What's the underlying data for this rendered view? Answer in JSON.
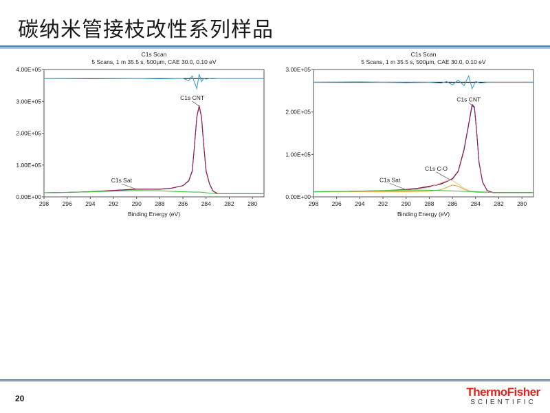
{
  "slide": {
    "title": "碳纳米管接枝改性系列样品",
    "page_number": "20",
    "brand": {
      "top": "ThermoFisher",
      "bottom": "SCIENTIFIC",
      "color": "#e2231a"
    },
    "accent_color": "#5b7fae"
  },
  "chart_data": [
    {
      "type": "line",
      "title": "C1s Scan",
      "subtitle": "5 Scans,  1 m 35.5 s,  500µm,  CAE 30.0,  0.10 eV",
      "xlabel": "Binding Energy (eV)",
      "ylabel": "",
      "xlim": [
        298,
        279
      ],
      "ylim": [
        0,
        400000
      ],
      "xticks": [
        "298",
        "296",
        "294",
        "292",
        "290",
        "288",
        "286",
        "284",
        "282",
        "280"
      ],
      "yticks": [
        "0.00E+00",
        "1.00E+05",
        "2.00E+05",
        "3.00E+05",
        "4.00E+05"
      ],
      "residual_baseline": 372000,
      "series": [
        {
          "color": "#1f2a9a",
          "x": [
            298,
            296,
            294,
            292,
            290,
            289,
            288,
            287,
            286,
            285.5,
            285.2,
            285,
            284.8,
            284.6,
            284.4,
            284.2,
            284,
            283.7,
            283.4,
            283,
            282,
            281,
            280,
            279
          ],
          "y": [
            13000,
            14000,
            16000,
            20000,
            24000,
            24000,
            24000,
            27000,
            35000,
            50000,
            80000,
            160000,
            250000,
            285000,
            250000,
            160000,
            80000,
            40000,
            18000,
            10000,
            10000,
            10000,
            10000,
            10000
          ]
        },
        {
          "color": "#9b1f4e",
          "x": [
            298,
            296,
            294,
            292,
            290,
            289,
            288,
            287,
            286,
            285.5,
            285.2,
            285,
            284.8,
            284.6,
            284.4,
            284.2,
            284,
            283.7,
            283.4,
            283,
            282,
            281,
            280,
            279
          ],
          "y": [
            13000,
            14000,
            16500,
            20500,
            24500,
            24500,
            24500,
            27500,
            35500,
            51000,
            82000,
            162000,
            252000,
            287000,
            252000,
            162000,
            82000,
            41000,
            18500,
            10000,
            10000,
            10000,
            10000,
            10000
          ]
        },
        {
          "color": "#3fbf3f",
          "x": [
            298,
            295,
            292,
            290,
            288,
            286,
            285,
            284.5,
            284,
            283.5,
            283,
            282,
            281,
            280,
            279
          ],
          "y": [
            13000,
            15000,
            18000,
            20000,
            19000,
            16000,
            15000,
            15000,
            13000,
            11000,
            10000,
            10000,
            10000,
            10000,
            10000
          ]
        },
        {
          "color": "#3fa0c8",
          "x": [
            298,
            294,
            290,
            288,
            286,
            285.5,
            285.2,
            285,
            284.8,
            284.6,
            284.4,
            284.2,
            284,
            283.5,
            283,
            282,
            280,
            279
          ],
          "y": [
            372000,
            373000,
            372000,
            371000,
            372000,
            365000,
            380000,
            360000,
            340000,
            385000,
            362000,
            372000,
            370000,
            373000,
            372000,
            372000,
            372000,
            372000
          ]
        }
      ],
      "annotations": [
        {
          "text": "C1s CNT",
          "x": 284.6,
          "y": 285000,
          "label_x": 285.2,
          "label_y": 305000
        },
        {
          "text": "C1s Sat",
          "x": 290,
          "y": 24000,
          "label_x": 291.3,
          "label_y": 45000
        }
      ]
    },
    {
      "type": "line",
      "title": "C1s Scan",
      "subtitle": "5 Scans,  1 m 35.5 s,  500µm,  CAE 30.0,  0.10 eV",
      "xlabel": "Binding Energy (eV)",
      "ylabel": "",
      "xlim": [
        298,
        279
      ],
      "ylim": [
        0,
        300000
      ],
      "xticks": [
        "298",
        "296",
        "294",
        "292",
        "290",
        "288",
        "286",
        "284",
        "282",
        "280"
      ],
      "yticks": [
        "0.00E+00",
        "1.00E+05",
        "2.00E+05",
        "3.00E+05"
      ],
      "residual_baseline": 270000,
      "series": [
        {
          "color": "#1f2a9a",
          "x": [
            298,
            296,
            294,
            292,
            290,
            289,
            288,
            287,
            286,
            285.5,
            285,
            284.6,
            284.3,
            284.1,
            283.9,
            283.7,
            283.4,
            283,
            282.5,
            282,
            281,
            280,
            279
          ],
          "y": [
            12000,
            12500,
            13000,
            14000,
            17000,
            20000,
            24000,
            30000,
            42000,
            60000,
            110000,
            170000,
            215000,
            210000,
            150000,
            80000,
            35000,
            15000,
            10000,
            10000,
            10000,
            10000,
            10000
          ]
        },
        {
          "color": "#9b1f4e",
          "x": [
            298,
            296,
            294,
            292,
            290,
            289,
            288,
            287,
            286,
            285.5,
            285,
            284.6,
            284.3,
            284.1,
            283.9,
            283.7,
            283.4,
            283,
            282.5,
            282,
            281,
            280,
            279
          ],
          "y": [
            12000,
            12500,
            13500,
            14500,
            17500,
            20500,
            25000,
            31000,
            43000,
            61000,
            112000,
            172000,
            218000,
            212000,
            151000,
            81000,
            35000,
            15000,
            10000,
            10000,
            10000,
            10000,
            10000
          ]
        },
        {
          "color": "#e8a33a",
          "x": [
            298,
            290,
            288,
            287,
            286.5,
            286,
            285.5,
            285,
            284.5,
            284,
            283
          ],
          "y": [
            12000,
            12000,
            13000,
            17000,
            22000,
            28000,
            25000,
            18000,
            13000,
            11000,
            10000
          ]
        },
        {
          "color": "#f0c890",
          "x": [
            298,
            290,
            288,
            287,
            286.5,
            286.2,
            286,
            285.5,
            285,
            284.5,
            283
          ],
          "y": [
            12000,
            14000,
            22000,
            33000,
            38000,
            40000,
            38000,
            30000,
            20000,
            14000,
            10000
          ]
        },
        {
          "color": "#3fbf3f",
          "x": [
            298,
            295,
            292,
            290,
            288,
            286,
            285,
            284,
            283,
            282,
            279
          ],
          "y": [
            12000,
            13000,
            15000,
            16000,
            15500,
            14000,
            13000,
            12000,
            11000,
            10000,
            10000
          ]
        },
        {
          "color": "#3fa0c8",
          "x": [
            298,
            294,
            290,
            288,
            287,
            286.5,
            286,
            285.5,
            285,
            284.6,
            284.3,
            284,
            283.6,
            283,
            280,
            279
          ],
          "y": [
            270000,
            271000,
            269000,
            270000,
            268000,
            272000,
            264000,
            275000,
            262000,
            285000,
            255000,
            272000,
            268000,
            270000,
            270000,
            270000
          ]
        }
      ],
      "annotations": [
        {
          "text": "C1s CNT",
          "x": 284.1,
          "y": 212000,
          "label_x": 284.6,
          "label_y": 225000
        },
        {
          "text": "C1s C-O",
          "x": 286.2,
          "y": 40000,
          "label_x": 287.4,
          "label_y": 62000
        },
        {
          "text": "C1s Sat",
          "x": 290,
          "y": 17000,
          "label_x": 291.4,
          "label_y": 35000
        }
      ]
    }
  ]
}
